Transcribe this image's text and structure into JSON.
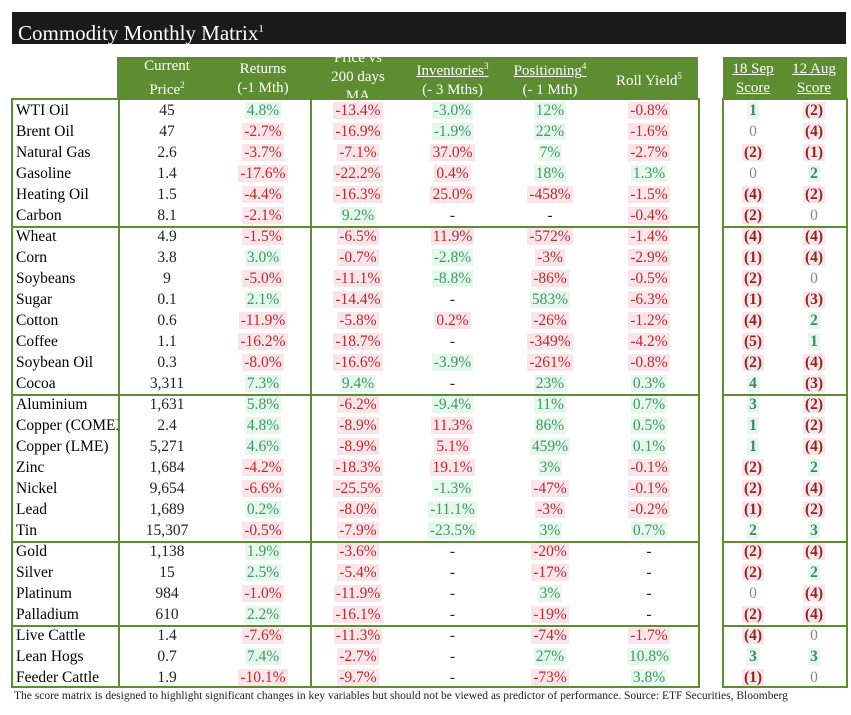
{
  "title": "Commodity Monthly Matrix",
  "title_note": "1",
  "headers": {
    "price": [
      "Current",
      "Price"
    ],
    "price_note": "2",
    "returns": [
      "Returns",
      "(-1 Mth)"
    ],
    "ma": [
      "Price vs",
      "200 days",
      "MA"
    ],
    "inventories": [
      "Inventories",
      "(- 3 Mths)"
    ],
    "inventories_note": "3",
    "positioning": [
      "Positioning",
      "(- 1 Mth)"
    ],
    "positioning_note": "4",
    "roll": "Roll Yield",
    "roll_note": "5",
    "score1": [
      "18 Sep",
      "Score"
    ],
    "score2": [
      "12 Aug",
      "Score"
    ]
  },
  "colors": {
    "header_green": "#5e8c31",
    "negative": "#b0302c",
    "positive": "#3e9a5e"
  },
  "rows": [
    [
      "WTI Oil",
      "45",
      "4.8%",
      "-13.4%",
      "-3.0%",
      "12%",
      "-0.8%",
      "1",
      "(2)"
    ],
    [
      "Brent Oil",
      "47",
      "-2.7%",
      "-16.9%",
      "-1.9%",
      "22%",
      "-1.6%",
      "0",
      "(4)"
    ],
    [
      "Natural Gas",
      "2.6",
      "-3.7%",
      "-7.1%",
      "37.0%",
      "7%",
      "-2.7%",
      "(2)",
      "(1)"
    ],
    [
      "Gasoline",
      "1.4",
      "-17.6%",
      "-22.2%",
      "0.4%",
      "18%",
      "1.3%",
      "0",
      "2"
    ],
    [
      "Heating Oil",
      "1.5",
      "-4.4%",
      "-16.3%",
      "25.0%",
      "-458%",
      "-1.5%",
      "(4)",
      "(2)"
    ],
    [
      "Carbon",
      "8.1",
      "-2.1%",
      "9.2%",
      "-",
      "-",
      "-0.4%",
      "(2)",
      "0"
    ],
    [
      "Wheat",
      "4.9",
      "-1.5%",
      "-6.5%",
      "11.9%",
      "-572%",
      "-1.4%",
      "(4)",
      "(4)"
    ],
    [
      "Corn",
      "3.8",
      "3.0%",
      "-0.7%",
      "-2.8%",
      "-3%",
      "-2.9%",
      "(1)",
      "(4)"
    ],
    [
      "Soybeans",
      "9",
      "-5.0%",
      "-11.1%",
      "-8.8%",
      "-86%",
      "-0.5%",
      "(2)",
      "0"
    ],
    [
      "Sugar",
      "0.1",
      "2.1%",
      "-14.4%",
      "-",
      "583%",
      "-6.3%",
      "(1)",
      "(3)"
    ],
    [
      "Cotton",
      "0.6",
      "-11.9%",
      "-5.8%",
      "0.2%",
      "-26%",
      "-1.2%",
      "(4)",
      "2"
    ],
    [
      "Coffee",
      "1.1",
      "-16.2%",
      "-18.7%",
      "-",
      "-349%",
      "-4.2%",
      "(5)",
      "1"
    ],
    [
      "Soybean Oil",
      "0.3",
      "-8.0%",
      "-16.6%",
      "-3.9%",
      "-261%",
      "-0.8%",
      "(2)",
      "(4)"
    ],
    [
      "Cocoa",
      "3,311",
      "7.3%",
      "9.4%",
      "-",
      "23%",
      "0.3%",
      "4",
      "(3)"
    ],
    [
      "Aluminium",
      "1,631",
      "5.8%",
      "-6.2%",
      "-9.4%",
      "11%",
      "0.7%",
      "3",
      "(2)"
    ],
    [
      "Copper (COMEX)",
      "2.4",
      "4.8%",
      "-8.9%",
      "11.3%",
      "86%",
      "0.5%",
      "1",
      "(2)"
    ],
    [
      "Copper (LME)",
      "5,271",
      "4.6%",
      "-8.9%",
      "5.1%",
      "459%",
      "0.1%",
      "1",
      "(4)"
    ],
    [
      "Zinc",
      "1,684",
      "-4.2%",
      "-18.3%",
      "19.1%",
      "3%",
      "-0.1%",
      "(2)",
      "2"
    ],
    [
      "Nickel",
      "9,654",
      "-6.6%",
      "-25.5%",
      "-1.3%",
      "-47%",
      "-0.1%",
      "(2)",
      "(4)"
    ],
    [
      "Lead",
      "1,689",
      "0.2%",
      "-8.0%",
      "-11.1%",
      "-3%",
      "-0.2%",
      "(1)",
      "(2)"
    ],
    [
      "Tin",
      "15,307",
      "-0.5%",
      "-7.9%",
      "-23.5%",
      "3%",
      "0.7%",
      "2",
      "3"
    ],
    [
      "Gold",
      "1,138",
      "1.9%",
      "-3.6%",
      "-",
      "-20%",
      "-",
      "(2)",
      "(4)"
    ],
    [
      "Silver",
      "15",
      "2.5%",
      "-5.4%",
      "-",
      "-17%",
      "-",
      "(2)",
      "2"
    ],
    [
      "Platinum",
      "984",
      "-1.0%",
      "-11.9%",
      "-",
      "3%",
      "-",
      "0",
      "(4)"
    ],
    [
      "Palladium",
      "610",
      "2.2%",
      "-16.1%",
      "-",
      "-19%",
      "-",
      "(2)",
      "(4)"
    ],
    [
      "Live Cattle",
      "1.4",
      "-7.6%",
      "-11.3%",
      "-",
      "-74%",
      "-1.7%",
      "(4)",
      "0"
    ],
    [
      "Lean Hogs",
      "0.7",
      "7.4%",
      "-2.7%",
      "-",
      "27%",
      "10.8%",
      "3",
      "3"
    ],
    [
      "Feeder Cattle",
      "1.9",
      "-10.1%",
      "-9.7%",
      "-",
      "-73%",
      "3.8%",
      "(1)",
      "0"
    ]
  ],
  "footer": "The score matrix is designed to highlight significant changes in key variables but should not be viewed as predictor of performance. Source: ETF Securities, Bloomberg"
}
